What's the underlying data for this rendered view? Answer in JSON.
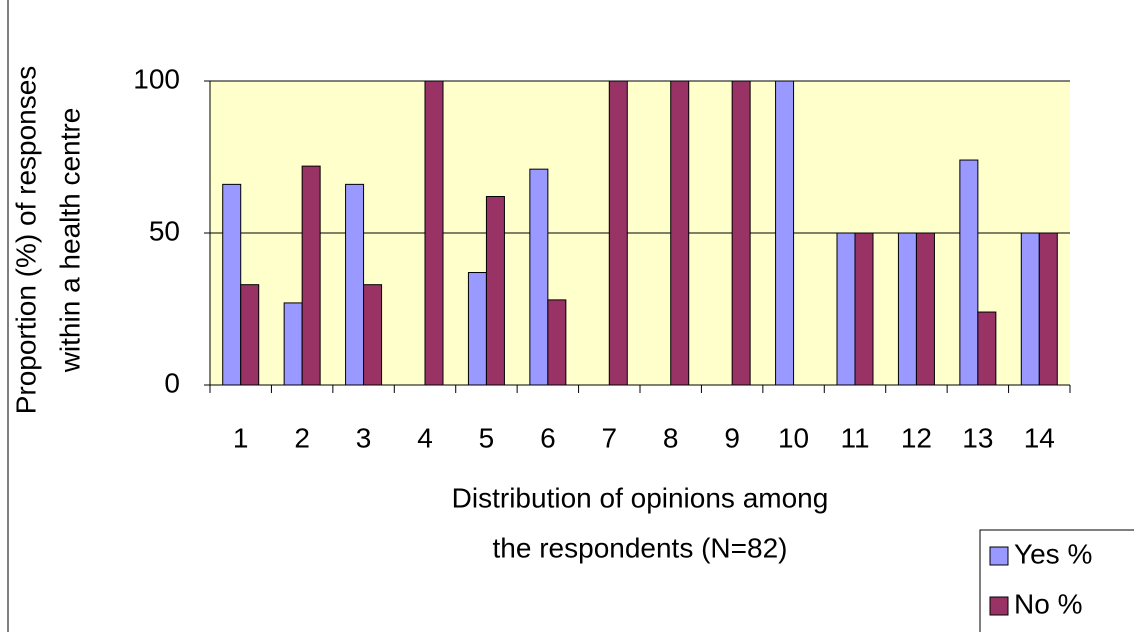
{
  "chart_data": {
    "type": "bar",
    "ylabel": [
      "Proportion (%) of responses",
      "within a health centre"
    ],
    "xlabel": [
      "Distribution of opinions among",
      "the respondents (N=82)"
    ],
    "categories": [
      "1",
      "2",
      "3",
      "4",
      "5",
      "6",
      "7",
      "8",
      "9",
      "10",
      "11",
      "12",
      "13",
      "14"
    ],
    "series": [
      {
        "name": "Yes %",
        "color": "#9999ff",
        "values": [
          66,
          27,
          66,
          0,
          37,
          71,
          0,
          0,
          0,
          100,
          50,
          50,
          74,
          50
        ]
      },
      {
        "name": "No %",
        "color": "#993366",
        "values": [
          33,
          72,
          33,
          100,
          62,
          28,
          100,
          100,
          100,
          0,
          50,
          50,
          24,
          50
        ]
      }
    ],
    "ylim": [
      0,
      100
    ],
    "yticks": [
      0,
      50,
      100
    ],
    "grid": true,
    "legend": "lower right",
    "background": "#ffffcc"
  }
}
